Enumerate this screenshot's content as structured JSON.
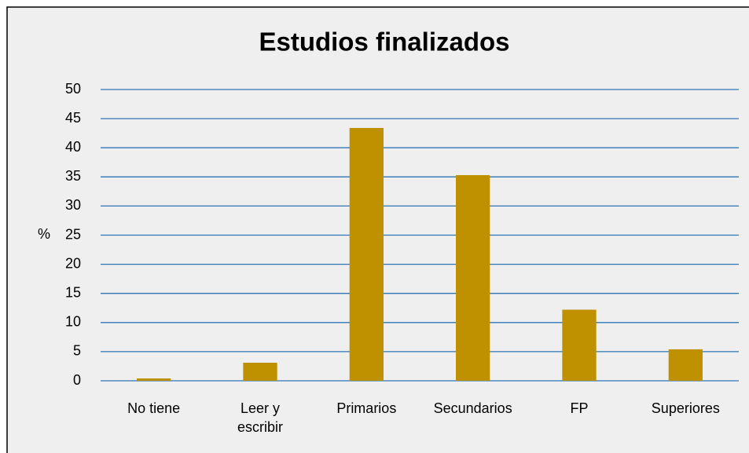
{
  "chart_data": {
    "type": "bar",
    "title": "Estudios finalizados",
    "y_label": "%",
    "categories": [
      "No tiene",
      "Leer y escribir",
      "Primarios",
      "Secundarios",
      "FP",
      "Superiores"
    ],
    "values": [
      0.4,
      3.1,
      43.4,
      35.3,
      12.2,
      5.4
    ],
    "color": "#bf9000",
    "ylim": [
      0,
      50
    ],
    "yticks": [
      0,
      5,
      10,
      15,
      20,
      25,
      30,
      35,
      40,
      45,
      50
    ],
    "grid": true
  }
}
